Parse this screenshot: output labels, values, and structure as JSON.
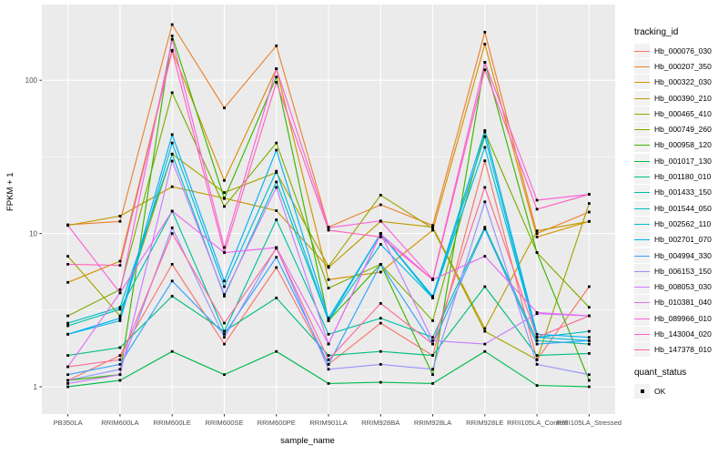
{
  "figure": {
    "panel_bg": "#EBEBEB",
    "grid_color": "#FFFFFF",
    "tick_text_color": "#4D4D4D",
    "axis_tick_color": "#333333",
    "point_color": "#000000",
    "legend_key_bg": "#F2F2F2"
  },
  "axes": {
    "y_label": "FPKM + 1",
    "x_label": "sample_name",
    "y_ticks": [
      {
        "label": "1",
        "value": 1
      },
      {
        "label": "10",
        "value": 10
      },
      {
        "label": "100",
        "value": 100
      }
    ],
    "y_minor": [
      3.1623,
      31.623
    ]
  },
  "legend": {
    "tracking_title": "tracking_id",
    "quant_title": "quant_status",
    "quant_items": [
      {
        "label": "OK"
      }
    ]
  },
  "chart_data": {
    "type": "line",
    "title": "",
    "xlabel": "sample_name",
    "ylabel": "FPKM + 1",
    "yscale": "log10",
    "ylim": [
      0.66,
      290
    ],
    "yticks": [
      1,
      10,
      100
    ],
    "grid": "on",
    "legend_position": "right",
    "point_marker": "black square (quant_status = OK for every point)",
    "categories": [
      "PB350LA",
      "RRIM600LA",
      "RRIM600LE",
      "RRIM600SE",
      "RRIM600PE",
      "RRIM901LA",
      "RRIM928BA",
      "RRIM928LA",
      "RRIM928LE",
      "RRII105LA_Control",
      "RRII105LA_Stressed"
    ],
    "series": [
      {
        "name": "Hb_000076_030",
        "color": "#F8766D",
        "values": [
          1.1,
          1.6,
          6.3,
          1.9,
          6.0,
          1.4,
          2.6,
          1.6,
          29.8,
          1.5,
          4.5
        ]
      },
      {
        "name": "Hb_000207_350",
        "color": "#EA8331",
        "values": [
          11.4,
          12.0,
          231,
          66,
          168,
          11.0,
          15.4,
          11.3,
          206,
          10.0,
          13.8
        ]
      },
      {
        "name": "Hb_000322_030",
        "color": "#D89000",
        "values": [
          4.8,
          6.6,
          157,
          22.2,
          119,
          5.0,
          5.6,
          10.5,
          172,
          9.5,
          12.0
        ]
      },
      {
        "name": "Hb_000390_210",
        "color": "#C09B00",
        "values": [
          11.3,
          13.0,
          20.2,
          17.0,
          14.1,
          6.0,
          12.0,
          11.0,
          2.4,
          10.4,
          12.0
        ]
      },
      {
        "name": "Hb_000465_410",
        "color": "#A3A500",
        "values": [
          7.1,
          2.9,
          33,
          18.5,
          25,
          6.1,
          17.8,
          10.8,
          2.3,
          1.5,
          15.7
        ]
      },
      {
        "name": "Hb_000749_260",
        "color": "#7CAE00",
        "values": [
          2.9,
          4.3,
          83,
          15.0,
          39,
          4.4,
          6.3,
          2.7,
          46,
          7.5,
          3.3
        ]
      },
      {
        "name": "Hb_000958_120",
        "color": "#39B600",
        "values": [
          1.1,
          1.2,
          195,
          16.9,
          105,
          2.7,
          6.3,
          1.2,
          131,
          7.5,
          1.1
        ]
      },
      {
        "name": "Hb_001017_130",
        "color": "#00BB4E",
        "values": [
          1.0,
          1.1,
          1.7,
          1.2,
          1.7,
          1.05,
          1.07,
          1.05,
          1.7,
          1.02,
          1.0
        ]
      },
      {
        "name": "Hb_001180_010",
        "color": "#00BF7D",
        "values": [
          1.6,
          1.8,
          3.9,
          2.3,
          3.8,
          1.6,
          1.7,
          1.6,
          4.5,
          1.6,
          1.65
        ]
      },
      {
        "name": "Hb_001433_150",
        "color": "#00C1A3",
        "values": [
          2.5,
          3.2,
          14.0,
          2.3,
          12.3,
          2.2,
          2.8,
          2.1,
          11.0,
          2.0,
          1.9
        ]
      },
      {
        "name": "Hb_001544_050",
        "color": "#00BFC4",
        "values": [
          2.6,
          3.3,
          33,
          3.9,
          21.7,
          2.7,
          10.0,
          3.8,
          42.9,
          2.1,
          2.3
        ]
      },
      {
        "name": "Hb_002562_110",
        "color": "#00BAE0",
        "values": [
          2.2,
          2.7,
          39,
          4.5,
          25.5,
          2.7,
          8.5,
          3.8,
          36.5,
          2.1,
          2.0
        ]
      },
      {
        "name": "Hb_002701_070",
        "color": "#00B0F6",
        "values": [
          2.2,
          2.8,
          44.2,
          4.9,
          35,
          2.8,
          10.0,
          3.9,
          47,
          2.2,
          2.1
        ]
      },
      {
        "name": "Hb_004994_330",
        "color": "#35A2FF",
        "values": [
          1.2,
          1.4,
          4.9,
          2.2,
          7.0,
          1.4,
          6.3,
          1.9,
          10.7,
          1.9,
          2.0
        ]
      },
      {
        "name": "Hb_006153_150",
        "color": "#9590FF",
        "values": [
          1.1,
          1.3,
          10.9,
          2.1,
          8.1,
          1.3,
          1.4,
          1.3,
          16.1,
          1.4,
          1.2
        ]
      },
      {
        "name": "Hb_008053_030",
        "color": "#C77CFF",
        "values": [
          1.05,
          1.2,
          29.7,
          4.0,
          20,
          1.9,
          10.0,
          2.0,
          1.9,
          3.0,
          2.9
        ]
      },
      {
        "name": "Hb_010381_040",
        "color": "#E76BF3",
        "values": [
          1.35,
          4.1,
          14.0,
          7.5,
          8.1,
          1.9,
          9.9,
          5.0,
          7.1,
          3.05,
          2.9
        ]
      },
      {
        "name": "Hb_089966_010",
        "color": "#FA62DB",
        "values": [
          11.3,
          4.1,
          185,
          8.1,
          119,
          10.9,
          12.1,
          5.05,
          131,
          16.5,
          18.0
        ]
      },
      {
        "name": "Hb_143004_020",
        "color": "#FF62BC",
        "values": [
          6.3,
          6.2,
          155,
          7.5,
          97,
          10.5,
          9.5,
          5.0,
          117,
          14.4,
          18.0
        ]
      },
      {
        "name": "Hb_147378_010",
        "color": "#FF6A98",
        "values": [
          1.35,
          1.5,
          10.0,
          2.6,
          8.0,
          1.5,
          3.5,
          1.9,
          20.0,
          2.1,
          2.9
        ]
      }
    ]
  }
}
